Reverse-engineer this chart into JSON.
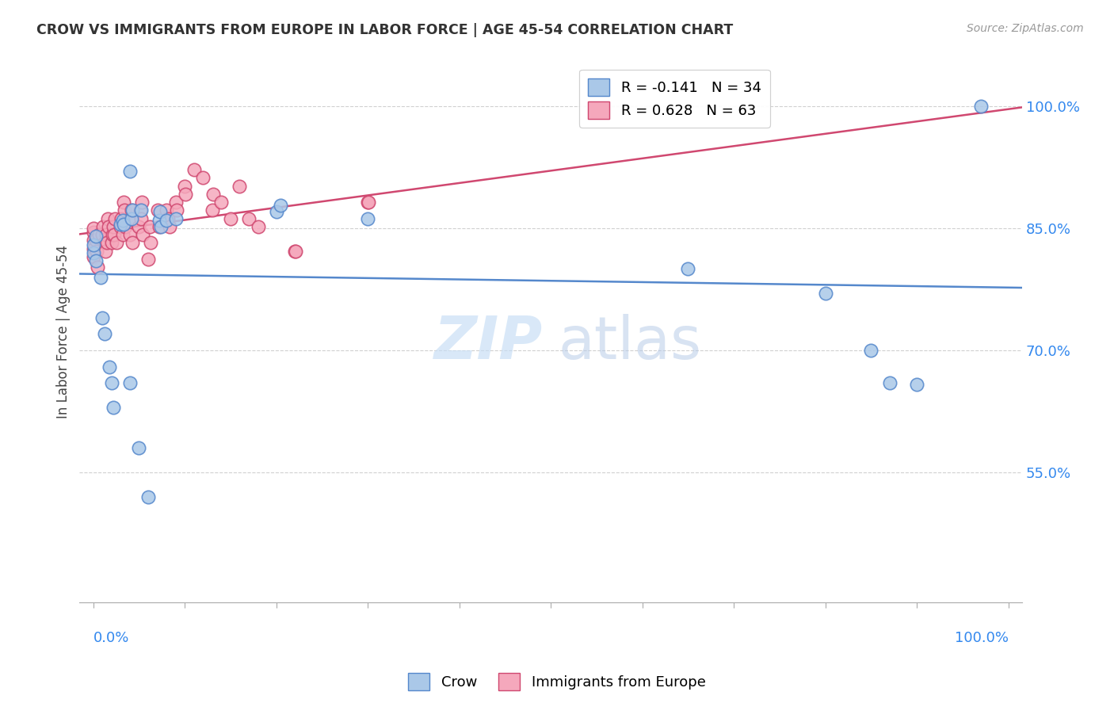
{
  "title": "CROW VS IMMIGRANTS FROM EUROPE IN LABOR FORCE | AGE 45-54 CORRELATION CHART",
  "source": "Source: ZipAtlas.com",
  "ylabel": "In Labor Force | Age 45-54",
  "ytick_vals": [
    0.55,
    0.7,
    0.85,
    1.0
  ],
  "ytick_labels": [
    "55.0%",
    "70.0%",
    "85.0%",
    "100.0%"
  ],
  "legend_crow_label": "R = -0.141   N = 34",
  "legend_immig_label": "R = 0.628   N = 63",
  "legend_label_crow": "Crow",
  "legend_label_immig": "Immigrants from Europe",
  "crow_face": "#aac8e8",
  "crow_edge": "#5588cc",
  "immig_face": "#f5a8bc",
  "immig_edge": "#d04870",
  "crow_line": "#5588cc",
  "immig_line": "#d04870",
  "crow_points": [
    [
      0.0,
      0.82
    ],
    [
      0.0,
      0.83
    ],
    [
      0.003,
      0.84
    ],
    [
      0.003,
      0.81
    ],
    [
      0.008,
      0.79
    ],
    [
      0.01,
      0.74
    ],
    [
      0.012,
      0.72
    ],
    [
      0.018,
      0.68
    ],
    [
      0.02,
      0.66
    ],
    [
      0.022,
      0.63
    ],
    [
      0.03,
      0.855
    ],
    [
      0.032,
      0.86
    ],
    [
      0.033,
      0.855
    ],
    [
      0.04,
      0.66
    ],
    [
      0.042,
      0.862
    ],
    [
      0.043,
      0.872
    ],
    [
      0.05,
      0.58
    ],
    [
      0.052,
      0.872
    ],
    [
      0.06,
      0.52
    ],
    [
      0.072,
      0.86
    ],
    [
      0.073,
      0.87
    ],
    [
      0.074,
      0.852
    ],
    [
      0.08,
      0.86
    ],
    [
      0.09,
      0.862
    ],
    [
      0.2,
      0.87
    ],
    [
      0.205,
      0.878
    ],
    [
      0.3,
      0.862
    ],
    [
      0.04,
      0.92
    ],
    [
      0.65,
      0.8
    ],
    [
      0.8,
      0.77
    ],
    [
      0.85,
      0.7
    ],
    [
      0.87,
      0.66
    ],
    [
      0.9,
      0.658
    ],
    [
      0.97,
      1.0
    ]
  ],
  "immig_points": [
    [
      0.0,
      0.845
    ],
    [
      0.0,
      0.85
    ],
    [
      0.0,
      0.835
    ],
    [
      0.0,
      0.825
    ],
    [
      0.0,
      0.815
    ],
    [
      0.003,
      0.835
    ],
    [
      0.004,
      0.822
    ],
    [
      0.005,
      0.802
    ],
    [
      0.006,
      0.842
    ],
    [
      0.01,
      0.842
    ],
    [
      0.011,
      0.852
    ],
    [
      0.012,
      0.832
    ],
    [
      0.013,
      0.822
    ],
    [
      0.014,
      0.842
    ],
    [
      0.015,
      0.832
    ],
    [
      0.016,
      0.862
    ],
    [
      0.017,
      0.852
    ],
    [
      0.02,
      0.832
    ],
    [
      0.021,
      0.842
    ],
    [
      0.022,
      0.852
    ],
    [
      0.023,
      0.842
    ],
    [
      0.024,
      0.862
    ],
    [
      0.025,
      0.832
    ],
    [
      0.03,
      0.852
    ],
    [
      0.031,
      0.862
    ],
    [
      0.032,
      0.842
    ],
    [
      0.033,
      0.882
    ],
    [
      0.034,
      0.872
    ],
    [
      0.035,
      0.852
    ],
    [
      0.04,
      0.842
    ],
    [
      0.041,
      0.862
    ],
    [
      0.042,
      0.872
    ],
    [
      0.043,
      0.832
    ],
    [
      0.05,
      0.852
    ],
    [
      0.051,
      0.872
    ],
    [
      0.052,
      0.862
    ],
    [
      0.053,
      0.882
    ],
    [
      0.054,
      0.842
    ],
    [
      0.06,
      0.812
    ],
    [
      0.062,
      0.852
    ],
    [
      0.063,
      0.832
    ],
    [
      0.07,
      0.872
    ],
    [
      0.072,
      0.852
    ],
    [
      0.08,
      0.872
    ],
    [
      0.082,
      0.862
    ],
    [
      0.083,
      0.852
    ],
    [
      0.09,
      0.882
    ],
    [
      0.091,
      0.872
    ],
    [
      0.1,
      0.902
    ],
    [
      0.101,
      0.892
    ],
    [
      0.11,
      0.922
    ],
    [
      0.12,
      0.912
    ],
    [
      0.13,
      0.872
    ],
    [
      0.131,
      0.892
    ],
    [
      0.14,
      0.882
    ],
    [
      0.15,
      0.862
    ],
    [
      0.16,
      0.902
    ],
    [
      0.17,
      0.862
    ],
    [
      0.18,
      0.852
    ],
    [
      0.22,
      0.822
    ],
    [
      0.221,
      0.822
    ],
    [
      0.3,
      0.882
    ],
    [
      0.301,
      0.882
    ]
  ],
  "xlim": [
    -0.015,
    1.015
  ],
  "ylim": [
    0.39,
    1.055
  ],
  "watermark_zip": "ZIP",
  "watermark_atlas": "atlas",
  "background_color": "#ffffff",
  "grid_color": "#d0d0d0"
}
